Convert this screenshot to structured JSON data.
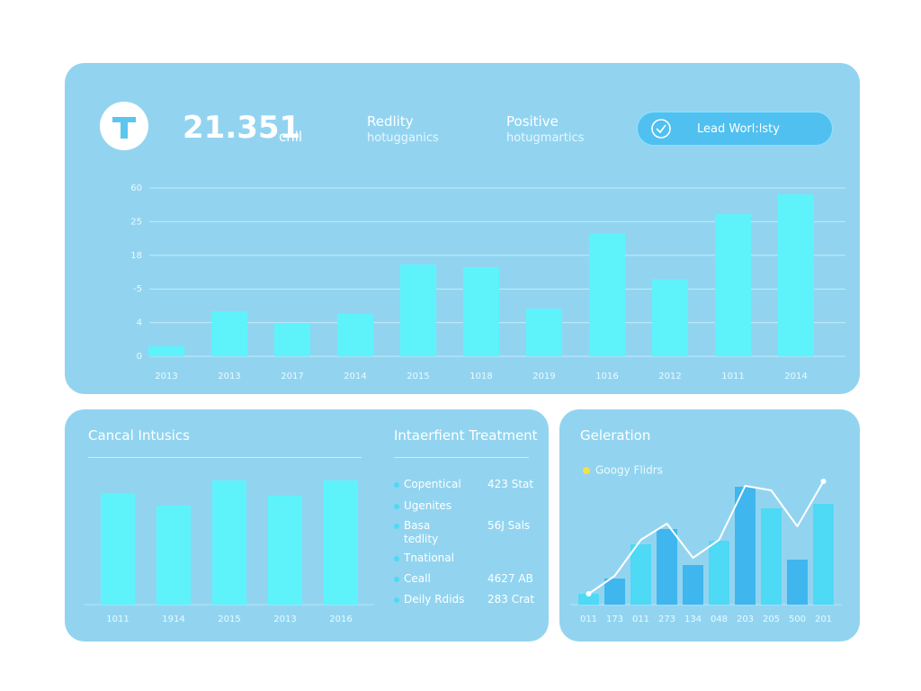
{
  "header": {
    "value": "21.351",
    "unit": "cnll",
    "stats": [
      {
        "title": "Redlity",
        "subtitle": "hotugganics"
      },
      {
        "title": "Positive",
        "subtitle": "hotugmartics"
      }
    ],
    "button": "Lead Worl:lsty"
  },
  "list": {
    "title": "Intaerfient Treatment",
    "items": [
      {
        "label": "Copentical",
        "value": "423 Stat"
      },
      {
        "label": "Ugenites"
      },
      {
        "label": "Basa\ntedlity",
        "value": "56J Sals"
      },
      {
        "label": "Tnational"
      },
      {
        "label": "Ceall",
        "value": "4627 AB"
      },
      {
        "label": "Deily Rdids",
        "value": "283 Crat"
      }
    ]
  },
  "chart_data": [
    {
      "type": "bar",
      "categories": [
        "2013",
        "2013",
        "2017",
        "2014",
        "2015",
        "1018",
        "2019",
        "1016",
        "2012",
        "1011",
        "2014"
      ],
      "values": [
        0.3,
        1.34,
        0.99,
        1.26,
        2.73,
        2.65,
        1.42,
        3.66,
        2.3,
        4.22,
        4.81
      ],
      "color": "#5ef3fb",
      "ylim": [
        0,
        5
      ],
      "yticks": [
        0,
        {
          "value": 1,
          "label": "4"
        },
        {
          "value": 2,
          "label": "-5"
        },
        {
          "value": 3,
          "label": "18"
        },
        {
          "value": 4,
          "label": "25"
        },
        {
          "value": 5,
          "label": "60"
        }
      ],
      "grid": true
    },
    {
      "type": "bar",
      "title": "Cancal Intusics",
      "categories": [
        "1011",
        "1914",
        "2015",
        "2013",
        "2016"
      ],
      "values": [
        124,
        110,
        138,
        121,
        138
      ],
      "color": "#5ef3fb",
      "ylim": [
        0,
        140
      ]
    },
    {
      "type": "bar-line",
      "title": "Geleration",
      "categories": [
        "011",
        "173",
        "011",
        "273",
        "134",
        "048",
        "203",
        "205",
        "500",
        "201"
      ],
      "ylim": [
        0,
        140
      ],
      "series": [
        {
          "type": "bar",
          "colors": [
            "#4ed9f5",
            "#3fb6ee",
            "#4ed9f5",
            "#3fb6ee",
            "#3fb6ee",
            "#4ed9f5",
            "#3fb6ee",
            "#4ed9f5",
            "#3fb6ee",
            "#4ed9f5"
          ],
          "values": [
            12,
            29,
            67,
            84,
            44,
            71,
            131,
            107,
            50,
            112
          ]
        },
        {
          "type": "line",
          "name": "Googy Flidrs",
          "color": "#ffffff",
          "legend_color": "#f3e04b",
          "values": [
            12,
            32,
            72,
            90,
            52,
            72,
            132,
            127,
            87,
            137
          ]
        }
      ]
    }
  ]
}
